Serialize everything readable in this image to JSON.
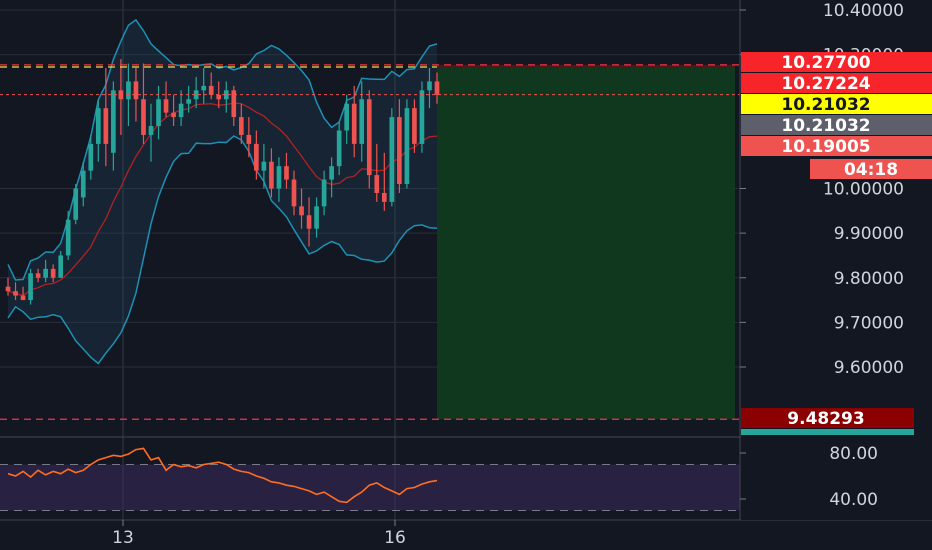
{
  "chart_data": {
    "type": "candlestick",
    "price_axis": {
      "ticks": [
        "10.40000",
        "10.30000",
        "10.00000",
        "9.90000",
        "9.80000",
        "9.70000",
        "9.60000"
      ],
      "tick_values": [
        10.4,
        10.3,
        10.0,
        9.9,
        9.8,
        9.7,
        9.6
      ],
      "range": [
        9.46,
        10.445
      ]
    },
    "time_axis": {
      "ticks": [
        "13",
        "16"
      ]
    },
    "price_tags": [
      {
        "label": "10.27700",
        "value": 10.277,
        "bg": "#f7252a",
        "fg": "#ffffff"
      },
      {
        "label": "10.27224",
        "value": 10.2722,
        "bg": "#f7252a",
        "fg": "#ffffff"
      },
      {
        "label": "10.21032",
        "value": 10.2103,
        "bg": "#ffff00",
        "fg": "#131722"
      },
      {
        "label": "10.21032",
        "value": 10.2103,
        "bg": "#5d606b",
        "fg": "#ffffff"
      },
      {
        "label": "10.19005",
        "value": 10.19,
        "bg": "#ef5350",
        "fg": "#ffffff"
      },
      {
        "label": "04:18",
        "value": 10.09,
        "bg": "#ef5350",
        "fg": "#ffffff"
      },
      {
        "label": "9.48293",
        "value": 9.48293,
        "bg": "#8b0000",
        "fg": "#ffffff"
      }
    ],
    "levels": {
      "stop_loss": 10.277,
      "entry": 10.2722,
      "current": 10.2103,
      "target": 9.48293
    },
    "candles": [
      [
        9.78,
        9.8,
        9.76,
        9.77
      ],
      [
        9.77,
        9.79,
        9.75,
        9.76
      ],
      [
        9.76,
        9.78,
        9.75,
        9.75
      ],
      [
        9.75,
        9.82,
        9.74,
        9.81
      ],
      [
        9.81,
        9.82,
        9.79,
        9.8
      ],
      [
        9.8,
        9.84,
        9.79,
        9.82
      ],
      [
        9.82,
        9.83,
        9.79,
        9.8
      ],
      [
        9.8,
        9.86,
        9.8,
        9.85
      ],
      [
        9.85,
        9.95,
        9.84,
        9.93
      ],
      [
        9.93,
        10.01,
        9.92,
        10.0
      ],
      [
        9.98,
        10.06,
        9.96,
        10.04
      ],
      [
        10.04,
        10.12,
        10.02,
        10.1
      ],
      [
        10.1,
        10.2,
        10.06,
        10.18
      ],
      [
        10.18,
        10.27,
        10.05,
        10.1
      ],
      [
        10.08,
        10.24,
        10.04,
        10.22
      ],
      [
        10.22,
        10.29,
        10.12,
        10.2
      ],
      [
        10.2,
        10.28,
        10.14,
        10.24
      ],
      [
        10.24,
        10.27,
        10.15,
        10.2
      ],
      [
        10.2,
        10.28,
        10.1,
        10.12
      ],
      [
        10.12,
        10.19,
        10.06,
        10.14
      ],
      [
        10.14,
        10.23,
        10.11,
        10.2
      ],
      [
        10.2,
        10.24,
        10.16,
        10.17
      ],
      [
        10.17,
        10.21,
        10.14,
        10.16
      ],
      [
        10.16,
        10.22,
        10.14,
        10.19
      ],
      [
        10.19,
        10.23,
        10.17,
        10.2
      ],
      [
        10.2,
        10.25,
        10.18,
        10.22
      ],
      [
        10.22,
        10.27,
        10.19,
        10.23
      ],
      [
        10.23,
        10.26,
        10.2,
        10.21
      ],
      [
        10.21,
        10.24,
        10.18,
        10.2
      ],
      [
        10.2,
        10.24,
        10.17,
        10.22
      ],
      [
        10.22,
        10.23,
        10.14,
        10.16
      ],
      [
        10.16,
        10.19,
        10.1,
        10.12
      ],
      [
        10.12,
        10.16,
        10.07,
        10.1
      ],
      [
        10.1,
        10.13,
        10.02,
        10.04
      ],
      [
        10.04,
        10.1,
        10.0,
        10.06
      ],
      [
        10.06,
        10.09,
        9.98,
        10.0
      ],
      [
        10.0,
        10.07,
        9.97,
        10.05
      ],
      [
        10.05,
        10.08,
        10.0,
        10.02
      ],
      [
        10.02,
        10.04,
        9.94,
        9.96
      ],
      [
        9.96,
        10.0,
        9.91,
        9.94
      ],
      [
        9.94,
        9.98,
        9.87,
        9.91
      ],
      [
        9.91,
        9.98,
        9.89,
        9.96
      ],
      [
        9.96,
        10.04,
        9.94,
        10.02
      ],
      [
        10.02,
        10.07,
        9.98,
        10.05
      ],
      [
        10.05,
        10.15,
        10.03,
        10.13
      ],
      [
        10.13,
        10.21,
        10.1,
        10.19
      ],
      [
        10.19,
        10.23,
        10.07,
        10.1
      ],
      [
        10.1,
        10.24,
        10.06,
        10.2
      ],
      [
        10.2,
        10.22,
        10.0,
        10.03
      ],
      [
        10.03,
        10.1,
        9.97,
        9.99
      ],
      [
        9.99,
        10.08,
        9.95,
        9.97
      ],
      [
        9.97,
        10.18,
        9.96,
        10.16
      ],
      [
        10.16,
        10.2,
        9.99,
        10.01
      ],
      [
        10.01,
        10.2,
        10.0,
        10.18
      ],
      [
        10.18,
        10.2,
        10.08,
        10.1
      ],
      [
        10.1,
        10.24,
        10.08,
        10.22
      ],
      [
        10.22,
        10.27,
        10.18,
        10.24
      ],
      [
        10.24,
        10.26,
        10.19,
        10.21
      ]
    ],
    "rsi": {
      "ticks": [
        "80.00",
        "40.00"
      ],
      "tick_values": [
        80,
        40
      ],
      "upper": 70,
      "lower": 30,
      "values": [
        62,
        60,
        64,
        59,
        65,
        61,
        64,
        62,
        66,
        63,
        65,
        70,
        74,
        76,
        78,
        77,
        79,
        83,
        84,
        74,
        76,
        65,
        70,
        68,
        69,
        67,
        70,
        71,
        72,
        70,
        66,
        64,
        63,
        60,
        58,
        55,
        54,
        52,
        51,
        49,
        47,
        44,
        46,
        42,
        38,
        37,
        42,
        46,
        52,
        54,
        50,
        47,
        44,
        49,
        50,
        53,
        55,
        56
      ]
    },
    "colors": {
      "background": "#131722",
      "up": "#26a69a",
      "down": "#ef5350",
      "grid": "#2a2e39",
      "bb_band": "#1e90b4",
      "bb_basis": "#b22222",
      "rsi": "#ff6d1f",
      "rsi_fill": "#3a2a5c",
      "profit_zone": "#0f3a20",
      "loss_zone": "#5a1419"
    }
  }
}
